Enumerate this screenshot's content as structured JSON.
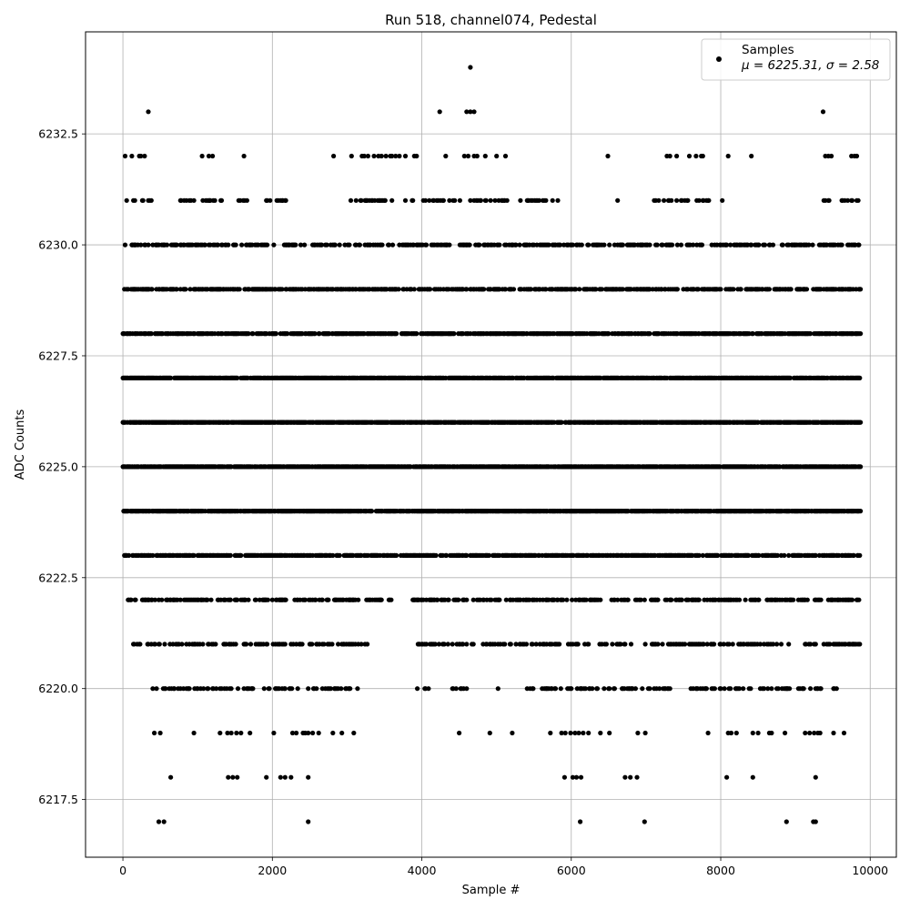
{
  "chart_data": {
    "type": "scatter",
    "title": "Run 518, channel074, Pedestal",
    "xlabel": "Sample #",
    "ylabel": "ADC Counts",
    "xlim": [
      -500,
      10350
    ],
    "ylim": [
      6216.2,
      6234.8
    ],
    "xticks": [
      0,
      2000,
      4000,
      6000,
      8000,
      10000
    ],
    "yticks": [
      6217.5,
      6220.0,
      6222.5,
      6225.0,
      6227.5,
      6230.0,
      6232.5
    ],
    "xtick_labels": [
      "0",
      "2000",
      "4000",
      "6000",
      "8000",
      "10000"
    ],
    "ytick_labels": [
      "6217.5",
      "6220.0",
      "6222.5",
      "6225.0",
      "6227.5",
      "6230.0",
      "6232.5"
    ],
    "grid": true,
    "legend_position": "top-right",
    "marker_color": "#000000",
    "legend": {
      "label": "Samples",
      "stats": "μ = 6225.31, σ = 2.58"
    },
    "n_samples": 9900,
    "x_range": [
      0,
      9900
    ],
    "levels": [
      {
        "y": 6217,
        "x": [
          480,
          550,
          2480,
          6120,
          6980,
          8880,
          9240,
          9270
        ]
      },
      {
        "y": 6218,
        "x": [
          640,
          1410,
          1470,
          1530,
          1920,
          2110,
          2170,
          2250,
          2480,
          5910,
          6020,
          6070,
          6130,
          6720,
          6790,
          6880,
          8080,
          8430,
          9270
        ]
      },
      {
        "y": 6219,
        "x": [
          420,
          500,
          950,
          1300,
          1400,
          1450,
          1520,
          1580,
          1700,
          2020,
          2270,
          2320,
          2410,
          2440,
          2480,
          2540,
          2620,
          2810,
          2930,
          3090,
          4500,
          4910,
          5210,
          5720,
          5870,
          5920,
          5990,
          6050,
          6100,
          6160,
          6230,
          6390,
          6510,
          6890,
          6990,
          7830,
          8100,
          8140,
          8210,
          8430,
          8500,
          8650,
          8680,
          8860,
          9130,
          9190,
          9250,
          9300,
          9330,
          9510,
          9650
        ]
      },
      {
        "y": 6220,
        "band": [
          [
            400,
            1450
          ],
          [
            1500,
            3180
          ],
          [
            3880,
            4000
          ],
          [
            4040,
            4100
          ],
          [
            4330,
            4600
          ],
          [
            4960,
            5050
          ],
          [
            5360,
            5520
          ],
          [
            5560,
            6900
          ],
          [
            6940,
            7320
          ],
          [
            7560,
            8400
          ],
          [
            8450,
            9350
          ],
          [
            9500,
            9560
          ],
          [
            9690,
            9740
          ]
        ],
        "density": 0.25
      },
      {
        "y": 6221,
        "band": [
          [
            70,
            1300
          ],
          [
            1300,
            3290
          ],
          [
            3940,
            5560
          ],
          [
            5560,
            9860
          ]
        ],
        "density": 0.3
      },
      {
        "y": 6222,
        "band": [
          [
            60,
            3300
          ],
          [
            3300,
            3470
          ],
          [
            3560,
            3620
          ],
          [
            3880,
            4260
          ],
          [
            4260,
            9850
          ]
        ],
        "density": 0.4
      },
      {
        "y": 6223,
        "band": [
          [
            20,
            3280
          ],
          [
            3280,
            9860
          ]
        ],
        "density": 0.6
      },
      {
        "y": 6224,
        "band": [
          [
            0,
            9870
          ]
        ],
        "density": 0.75
      },
      {
        "y": 6225,
        "band": [
          [
            0,
            9870
          ]
        ],
        "density": 0.8
      },
      {
        "y": 6226,
        "band": [
          [
            0,
            9870
          ]
        ],
        "density": 0.8
      },
      {
        "y": 6227,
        "band": [
          [
            0,
            9870
          ]
        ],
        "density": 0.75
      },
      {
        "y": 6228,
        "band": [
          [
            0,
            9870
          ]
        ],
        "density": 0.6
      },
      {
        "y": 6229,
        "band": [
          [
            0,
            9870
          ]
        ],
        "density": 0.5
      },
      {
        "y": 6230,
        "band": [
          [
            0,
            9870
          ]
        ],
        "density": 0.35
      },
      {
        "y": 6231,
        "band": [
          [
            20,
            410
          ],
          [
            720,
            1340
          ],
          [
            1550,
            1660
          ],
          [
            1910,
            2180
          ],
          [
            2980,
            3900
          ],
          [
            4010,
            4520
          ],
          [
            4630,
            5170
          ],
          [
            5270,
            5850
          ],
          [
            6620,
            6650
          ],
          [
            7110,
            7860
          ],
          [
            8000,
            8040
          ],
          [
            8640,
            8660
          ],
          [
            9350,
            9460
          ],
          [
            9560,
            9860
          ]
        ],
        "density": 0.25
      },
      {
        "y": 6232,
        "x": [
          30,
          120,
          220,
          240,
          290,
          1060,
          1150,
          1200,
          1620,
          2820,
          3060,
          3200,
          3230,
          3280,
          3360,
          3420,
          3460,
          3520,
          3580,
          3600,
          3650,
          3700,
          3780,
          3900,
          3930,
          4320,
          4570,
          4620,
          4700,
          4740,
          4850,
          5000,
          5120,
          6490,
          7280,
          7320,
          7410,
          7580,
          7670,
          7740,
          7760,
          8100,
          8410,
          9400,
          9440,
          9480,
          9750,
          9790,
          9820
        ]
      },
      {
        "y": 6233,
        "x": [
          340,
          4240,
          4600,
          4650,
          4700,
          9370
        ]
      },
      {
        "y": 6234,
        "x": [
          4650
        ]
      }
    ]
  }
}
